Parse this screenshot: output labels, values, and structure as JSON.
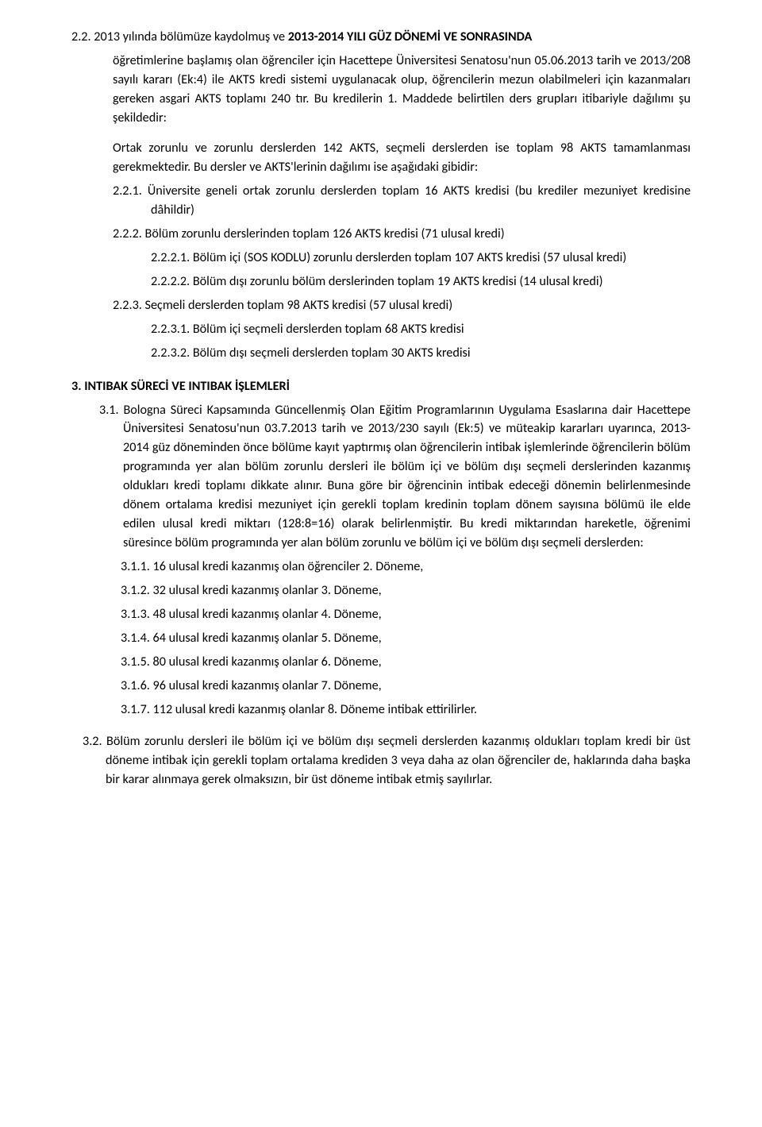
{
  "p22_lead": "2.2. 2013 yılında bölümüze kaydolmuş ve ",
  "p22_bold": "2013-2014 YILI GÜZ DÖNEMİ VE SONRASINDA",
  "p22_rest": "öğretimlerine başlamış olan öğrenciler için Hacettepe Üniversitesi Senatosu'nun 05.06.2013 tarih ve 2013/208 sayılı kararı  (Ek:4) ile AKTS kredi sistemi uygulanacak olup, öğrencilerin mezun olabilmeleri için kazanmaları gereken asgari AKTS toplamı 240 tır. Bu kredilerin 1. Maddede belirtilen ders grupları itibariyle dağılımı şu şekildedir:",
  "p22_orta": "Ortak zorunlu ve zorunlu derslerden 142 AKTS, seçmeli derslerden ise toplam 98 AKTS tamamlanması gerekmektedir. Bu dersler ve AKTS'lerinin dağılımı ise aşağıdaki gibidir:",
  "p221": "2.2.1.   Üniversite geneli ortak zorunlu derslerden toplam 16 AKTS kredisi (bu krediler mezuniyet kredisine dâhildir)",
  "p222": "2.2.2.   Bölüm zorunlu derslerinden toplam 126 AKTS kredisi (71 ulusal kredi)",
  "p2221": "2.2.2.1. Bölüm içi (SOS KODLU)  zorunlu derslerden toplam 107 AKTS kredisi (57 ulusal kredi)",
  "p2222": "2.2.2.2. Bölüm dışı zorunlu bölüm derslerinden toplam 19 AKTS kredisi (14 ulusal kredi)",
  "p223": "2.2.3.   Seçmeli derslerden toplam 98 AKTS kredisi (57 ulusal kredi)",
  "p2231": "2.2.3.1. Bölüm içi seçmeli derslerden toplam 68 AKTS kredisi",
  "p2232": "2.2.3.2. Bölüm dışı seçmeli derslerden toplam 30 AKTS kredisi",
  "h3": "3.   INTIBAK SÜRECİ VE INTIBAK İŞLEMLERİ",
  "p31": "3.1. Bologna Süreci Kapsamında Güncellenmiş Olan Eğitim Programlarının Uygulama Esaslarına dair Hacettepe Üniversitesi Senatosu'nun 03.7.2013 tarih ve 2013/230 sayılı (Ek:5) ve müteakip kararları uyarınca, 2013-2014 güz döneminden önce bölüme kayıt yaptırmış olan öğrencilerin intibak işlemlerinde öğrencilerin bölüm programında yer alan bölüm zorunlu dersleri ile bölüm içi ve bölüm dışı seçmeli derslerinden kazanmış oldukları kredi toplamı dikkate alınır. Buna göre bir öğrencinin intibak edeceği dönemin belirlenmesinde dönem ortalama kredisi mezuniyet için gerekli toplam kredinin toplam dönem sayısına bölümü ile elde edilen ulusal kredi miktarı (128:8=16) olarak belirlenmiştir. Bu kredi miktarından hareketle, öğrenimi süresince bölüm programında yer alan bölüm zorunlu ve bölüm içi ve bölüm dışı seçmeli derslerden:",
  "p311": "3.1.1.   16 ulusal kredi kazanmış olan öğrenciler 2. Döneme,",
  "p312": "3.1.2.   32 ulusal kredi kazanmış olanlar 3. Döneme,",
  "p313": "3.1.3.   48 ulusal kredi kazanmış olanlar 4. Döneme,",
  "p314": "3.1.4.   64 ulusal kredi kazanmış olanlar 5. Döneme,",
  "p315": "3.1.5.   80 ulusal kredi kazanmış olanlar 6. Döneme,",
  "p316": "3.1.6.   96 ulusal kredi kazanmış olanlar 7. Döneme,",
  "p317": "3.1.7.   112 ulusal kredi kazanmış olanlar 8. Döneme intibak ettirilirler.",
  "p32": "3.2. Bölüm zorunlu dersleri ile bölüm içi ve bölüm dışı seçmeli derslerden kazanmış oldukları toplam kredi bir üst döneme intibak için gerekli toplam ortalama krediden 3 veya daha az olan öğrenciler de, haklarında daha başka bir karar alınmaya gerek olmaksızın, bir üst döneme intibak etmiş sayılırlar."
}
